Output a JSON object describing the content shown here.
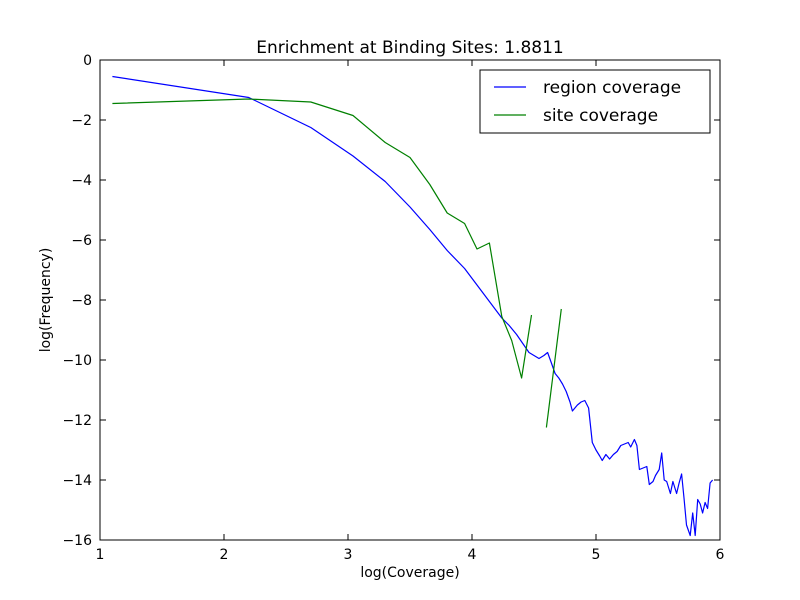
{
  "chart_data": {
    "type": "line",
    "title": "Enrichment at Binding Sites: 1.8811",
    "xlabel": "log(Coverage)",
    "ylabel": "log(Frequency)",
    "xlim": [
      1,
      6
    ],
    "ylim": [
      -16,
      0
    ],
    "xticks": [
      1,
      2,
      3,
      4,
      5,
      6
    ],
    "xtick_labels": [
      "1",
      "2",
      "3",
      "4",
      "5",
      "6"
    ],
    "yticks": [
      0,
      -2,
      -4,
      -6,
      -8,
      -10,
      -12,
      -14,
      -16
    ],
    "ytick_labels": [
      "0",
      "−2",
      "−4",
      "−6",
      "−8",
      "−10",
      "−12",
      "−14",
      "−16"
    ],
    "grid": false,
    "legend_position": "top-right",
    "series": [
      {
        "name": "region coverage",
        "color": "#0000ff",
        "points": [
          [
            1.1,
            -0.55
          ],
          [
            2.2,
            -1.25
          ],
          [
            2.7,
            -2.25
          ],
          [
            3.04,
            -3.2
          ],
          [
            3.3,
            -4.05
          ],
          [
            3.5,
            -4.9
          ],
          [
            3.66,
            -5.65
          ],
          [
            3.8,
            -6.35
          ],
          [
            3.94,
            -6.95
          ],
          [
            4.04,
            -7.5
          ],
          [
            4.14,
            -8.05
          ],
          [
            4.24,
            -8.6
          ],
          [
            4.3,
            -8.85
          ],
          [
            4.36,
            -9.15
          ],
          [
            4.41,
            -9.45
          ],
          [
            4.46,
            -9.75
          ],
          [
            4.5,
            -9.85
          ],
          [
            4.54,
            -9.95
          ],
          [
            4.58,
            -9.85
          ],
          [
            4.61,
            -9.75
          ],
          [
            4.64,
            -10.1
          ],
          [
            4.67,
            -10.45
          ],
          [
            4.7,
            -10.6
          ],
          [
            4.73,
            -10.8
          ],
          [
            4.76,
            -11.05
          ],
          [
            4.79,
            -11.4
          ],
          [
            4.81,
            -11.7
          ],
          [
            4.85,
            -11.5
          ],
          [
            4.88,
            -11.4
          ],
          [
            4.91,
            -11.35
          ],
          [
            4.94,
            -11.6
          ],
          [
            4.97,
            -12.75
          ],
          [
            5.0,
            -13.0
          ],
          [
            5.03,
            -13.2
          ],
          [
            5.05,
            -13.35
          ],
          [
            5.08,
            -13.15
          ],
          [
            5.11,
            -13.3
          ],
          [
            5.14,
            -13.15
          ],
          [
            5.17,
            -13.05
          ],
          [
            5.2,
            -12.85
          ],
          [
            5.23,
            -12.8
          ],
          [
            5.26,
            -12.75
          ],
          [
            5.28,
            -12.9
          ],
          [
            5.31,
            -12.65
          ],
          [
            5.33,
            -12.85
          ],
          [
            5.35,
            -13.65
          ],
          [
            5.38,
            -13.6
          ],
          [
            5.41,
            -13.55
          ],
          [
            5.43,
            -14.15
          ],
          [
            5.46,
            -14.05
          ],
          [
            5.48,
            -13.85
          ],
          [
            5.51,
            -13.65
          ],
          [
            5.53,
            -13.1
          ],
          [
            5.55,
            -14.0
          ],
          [
            5.57,
            -14.05
          ],
          [
            5.6,
            -14.45
          ],
          [
            5.62,
            -14.05
          ],
          [
            5.65,
            -14.45
          ],
          [
            5.67,
            -14.1
          ],
          [
            5.69,
            -13.8
          ],
          [
            5.71,
            -14.6
          ],
          [
            5.73,
            -15.5
          ],
          [
            5.76,
            -15.85
          ],
          [
            5.78,
            -15.1
          ],
          [
            5.8,
            -15.85
          ],
          [
            5.82,
            -14.65
          ],
          [
            5.84,
            -14.8
          ],
          [
            5.86,
            -15.1
          ],
          [
            5.88,
            -14.75
          ],
          [
            5.9,
            -14.95
          ],
          [
            5.92,
            -14.1
          ],
          [
            5.94,
            -14.0
          ]
        ]
      },
      {
        "name": "site coverage",
        "color": "#008000",
        "points": [
          [
            1.1,
            -1.45
          ],
          [
            2.2,
            -1.3
          ],
          [
            2.7,
            -1.4
          ],
          [
            3.04,
            -1.85
          ],
          [
            3.3,
            -2.75
          ],
          [
            3.5,
            -3.25
          ],
          [
            3.66,
            -4.15
          ],
          [
            3.8,
            -5.1
          ],
          [
            3.94,
            -5.45
          ],
          [
            4.04,
            -6.3
          ],
          [
            4.14,
            -6.1
          ],
          [
            4.24,
            -8.55
          ],
          [
            4.32,
            -9.35
          ],
          [
            4.4,
            -10.6
          ],
          [
            4.48,
            -8.5
          ]
        ]
      },
      {
        "name": "",
        "color": "#008000",
        "points": [
          [
            4.6,
            -12.25
          ],
          [
            4.72,
            -8.3
          ]
        ]
      }
    ]
  }
}
